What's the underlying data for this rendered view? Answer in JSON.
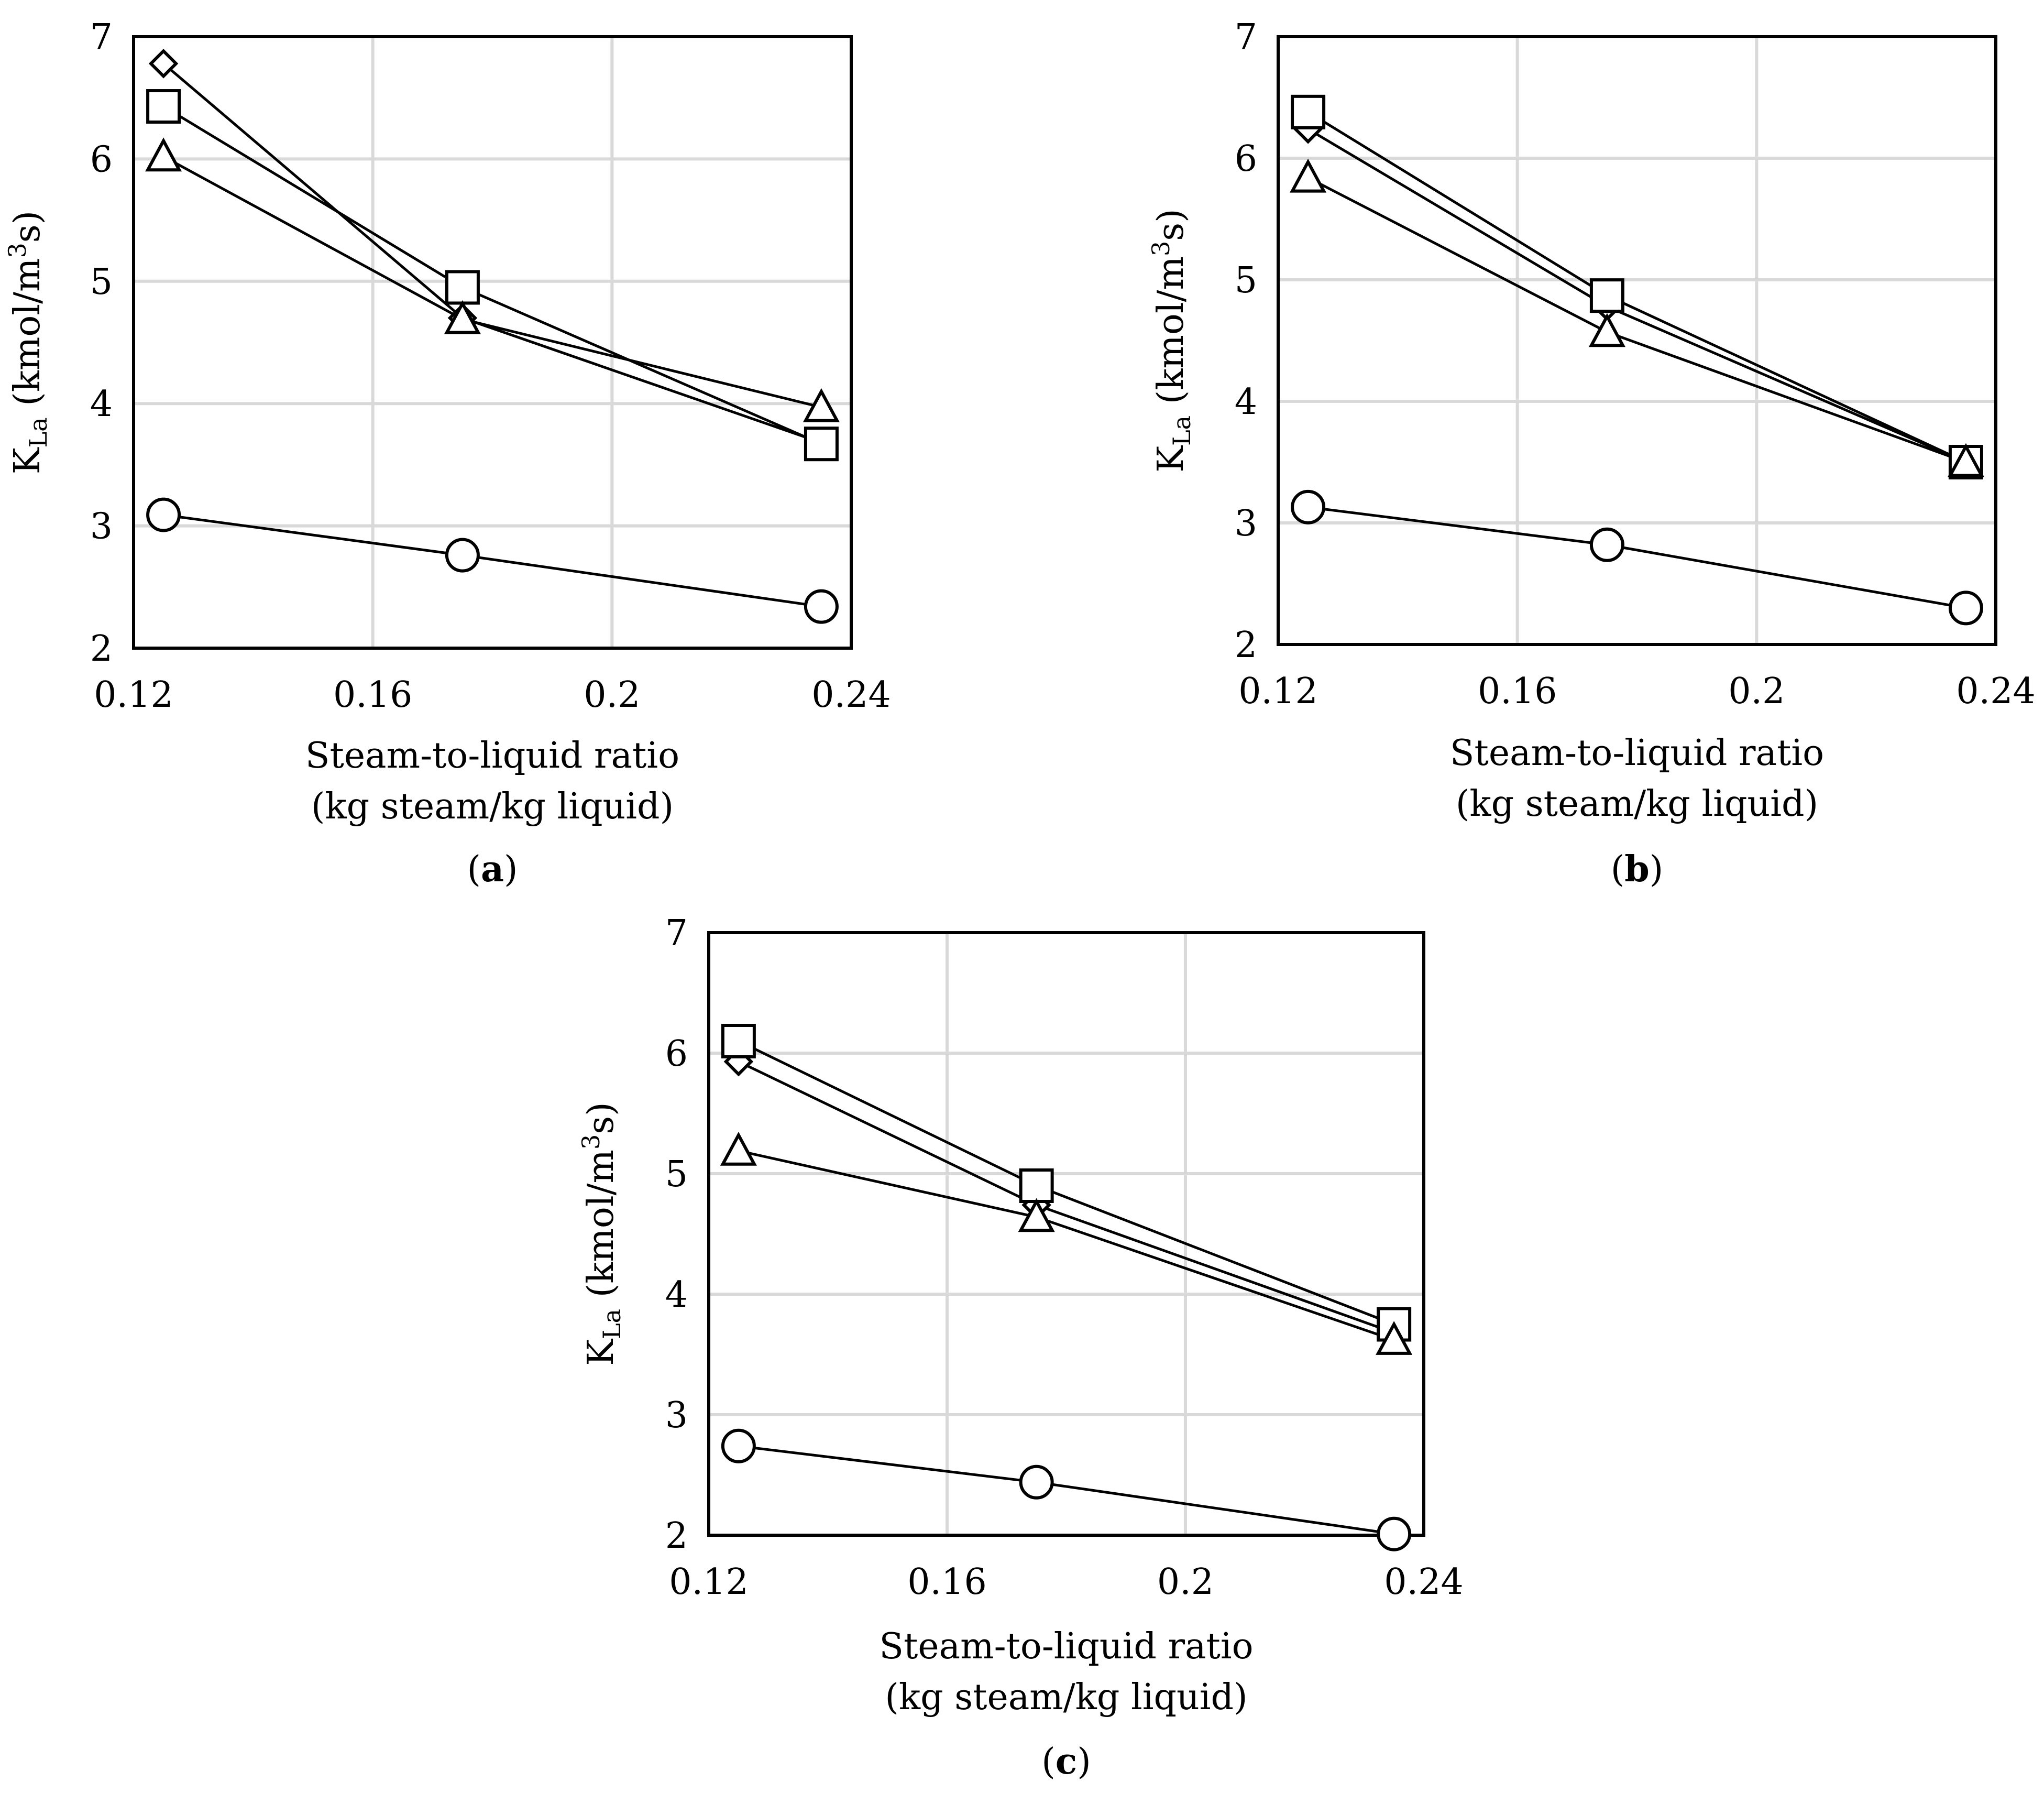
{
  "chart_data": [
    {
      "type": "line",
      "panel_label": "a",
      "title": "",
      "xlabel": "Steam-to-liquid ratio",
      "xlabel_line2": "(kg steam/kg liquid)",
      "ylabel_main": "K",
      "ylabel_sub": "La",
      "ylabel_units_pre": "(kmol/m",
      "ylabel_units_sup": "3",
      "ylabel_units_post": "s)",
      "xlim": [
        0.12,
        0.24
      ],
      "ylim": [
        2,
        7
      ],
      "xticks": [
        "0.12",
        "0.16",
        "0.2",
        "0.24"
      ],
      "yticks": [
        "2",
        "3",
        "4",
        "5",
        "6",
        "7"
      ],
      "grid": true,
      "x": [
        0.125,
        0.175,
        0.235
      ],
      "series": [
        {
          "name": "diamond",
          "marker": "diamond",
          "values": [
            6.78,
            4.7,
            3.68
          ]
        },
        {
          "name": "square",
          "marker": "square",
          "values": [
            6.43,
            4.95,
            3.67
          ]
        },
        {
          "name": "triangle",
          "marker": "triangle",
          "values": [
            6.02,
            4.69,
            3.97
          ]
        },
        {
          "name": "circle",
          "marker": "circle",
          "values": [
            3.09,
            2.76,
            2.34
          ]
        }
      ]
    },
    {
      "type": "line",
      "panel_label": "b",
      "title": "",
      "xlabel": "Steam-to-liquid ratio",
      "xlabel_line2": "(kg steam/kg liquid)",
      "ylabel_main": "K",
      "ylabel_sub": "La",
      "ylabel_units_pre": "(kmol/m",
      "ylabel_units_sup": "3",
      "ylabel_units_post": "s)",
      "xlim": [
        0.12,
        0.24
      ],
      "ylim": [
        2,
        7
      ],
      "xticks": [
        "0.12",
        "0.16",
        "0.2",
        "0.24"
      ],
      "yticks": [
        "2",
        "3",
        "4",
        "5",
        "6",
        "7"
      ],
      "grid": true,
      "x": [
        0.125,
        0.175,
        0.235
      ],
      "series": [
        {
          "name": "diamond",
          "marker": "diamond",
          "values": [
            6.24,
            4.78,
            3.5
          ]
        },
        {
          "name": "square",
          "marker": "square",
          "values": [
            6.38,
            4.87,
            3.5
          ]
        },
        {
          "name": "triangle",
          "marker": "triangle",
          "values": [
            5.84,
            4.57,
            3.5
          ]
        },
        {
          "name": "circle",
          "marker": "circle",
          "values": [
            3.13,
            2.82,
            2.3
          ]
        }
      ]
    },
    {
      "type": "line",
      "panel_label": "c",
      "title": "",
      "xlabel": "Steam-to-liquid ratio",
      "xlabel_line2": "(kg steam/kg liquid)",
      "ylabel_main": "K",
      "ylabel_sub": "La",
      "ylabel_units_pre": "(kmol/m",
      "ylabel_units_sup": "3",
      "ylabel_units_post": "s)",
      "xlim": [
        0.12,
        0.24
      ],
      "ylim": [
        2,
        7
      ],
      "xticks": [
        "0.12",
        "0.16",
        "0.2",
        "0.24"
      ],
      "yticks": [
        "2",
        "3",
        "4",
        "5",
        "6",
        "7"
      ],
      "grid": true,
      "x": [
        0.125,
        0.175,
        0.235
      ],
      "series": [
        {
          "name": "diamond",
          "marker": "diamond",
          "values": [
            5.93,
            4.74,
            3.68
          ]
        },
        {
          "name": "square",
          "marker": "square",
          "values": [
            6.1,
            4.9,
            3.75
          ]
        },
        {
          "name": "triangle",
          "marker": "triangle",
          "values": [
            5.19,
            4.64,
            3.62
          ]
        },
        {
          "name": "circle",
          "marker": "circle",
          "values": [
            2.74,
            2.44,
            2.01
          ]
        }
      ]
    }
  ]
}
